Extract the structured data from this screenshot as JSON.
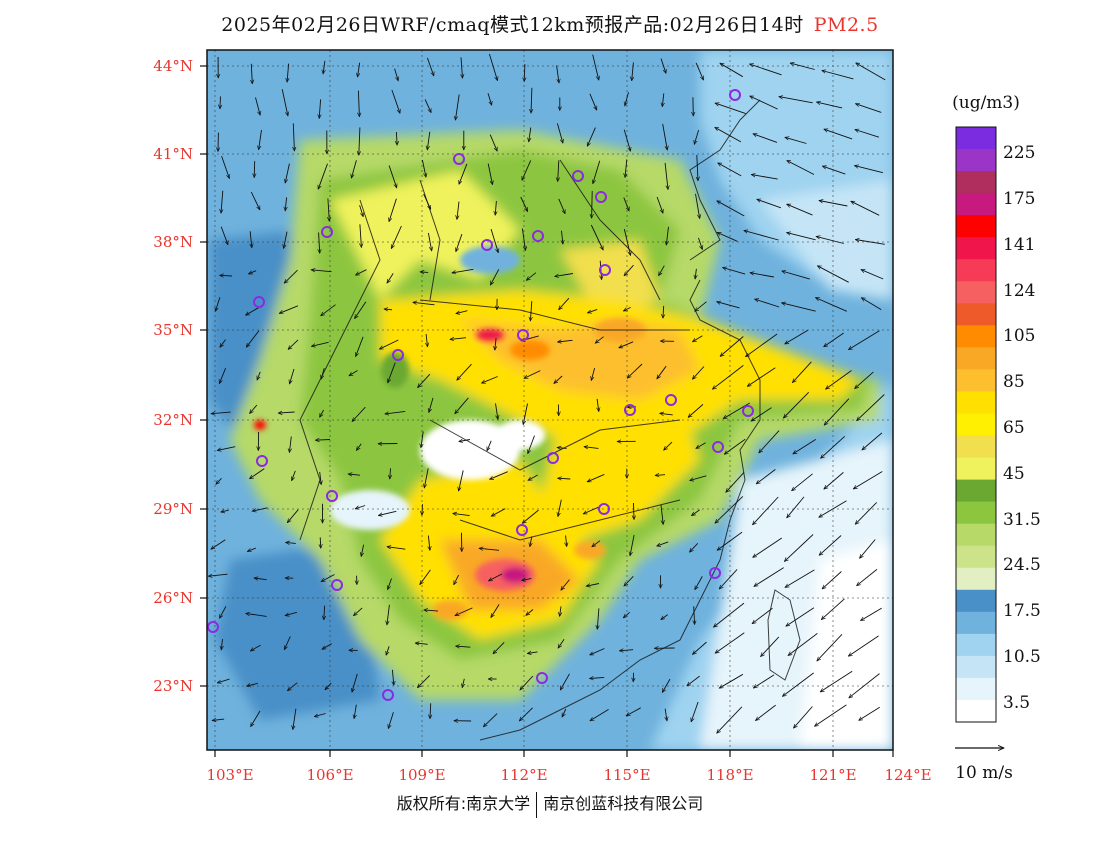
{
  "title": {
    "main": "2025年02月26日WRF/cmaq模式12km预报产品:02月26日14时",
    "pollutant": "PM2.5"
  },
  "axes": {
    "lat_labels": [
      "44°N",
      "41°N",
      "38°N",
      "35°N",
      "32°N",
      "29°N",
      "26°N",
      "23°N"
    ],
    "lon_labels": [
      "103°E",
      "106°E",
      "109°E",
      "112°E",
      "115°E",
      "118°E",
      "121°E",
      "124°E"
    ]
  },
  "colorbar": {
    "unit": "(ug/m3)",
    "labels": [
      "225",
      "175",
      "141",
      "124",
      "105",
      "85",
      "65",
      "45",
      "31.5",
      "24.5",
      "17.5",
      "10.5",
      "3.5"
    ],
    "colors": [
      "#7b2be0",
      "#9a35c8",
      "#b02e5e",
      "#c8197e",
      "#ff0000",
      "#f0154a",
      "#f73a55",
      "#f76060",
      "#ee5a2a",
      "#ff8c00",
      "#f9a825",
      "#fdbf2d",
      "#ffe000",
      "#ffef00",
      "#f2df4d",
      "#eff25c",
      "#6aa832",
      "#8cc63f",
      "#b6d968",
      "#cde38a",
      "#e2efc2",
      "#4a90c8",
      "#6fb2dd",
      "#9fd3f0",
      "#c5e5f6",
      "#e6f4fb",
      "#ffffff"
    ]
  },
  "wind_legend": {
    "label": "10 m/s"
  },
  "copyright": {
    "left": "版权所有:南京大学",
    "right": "南京创蓝科技有限公司"
  }
}
